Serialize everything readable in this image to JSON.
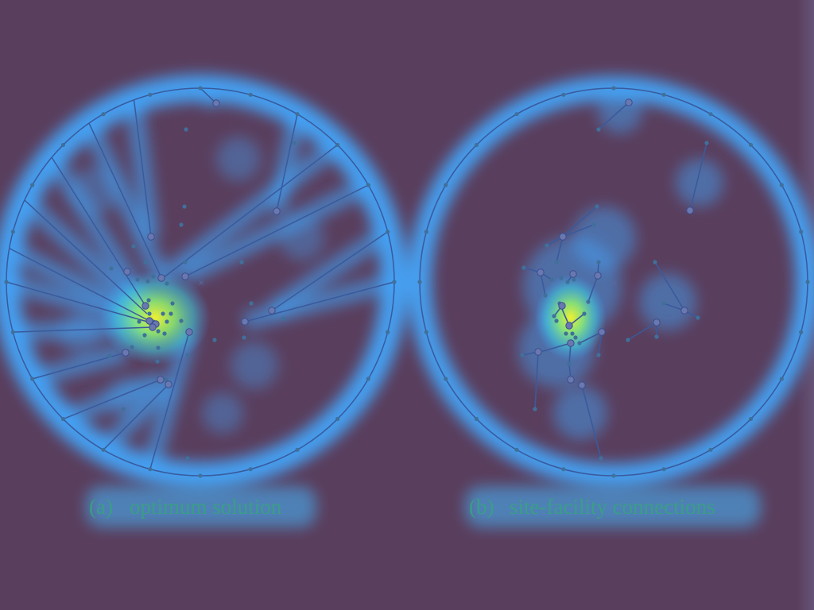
{
  "panels": [
    {
      "id": "a",
      "label": "(a)",
      "caption": "optimum solution"
    },
    {
      "id": "b",
      "label": "(b)",
      "caption": "site-facility connections"
    }
  ],
  "colors": {
    "background": "#5a3e5d",
    "line": "#3a5a9c",
    "site": "#40709a",
    "facility": "#6a78b0",
    "heat_low": "#3ea4ff",
    "heat_mid": "#54e0c0",
    "heat_high": "#d8f040",
    "caption": "#3a9e86"
  }
}
